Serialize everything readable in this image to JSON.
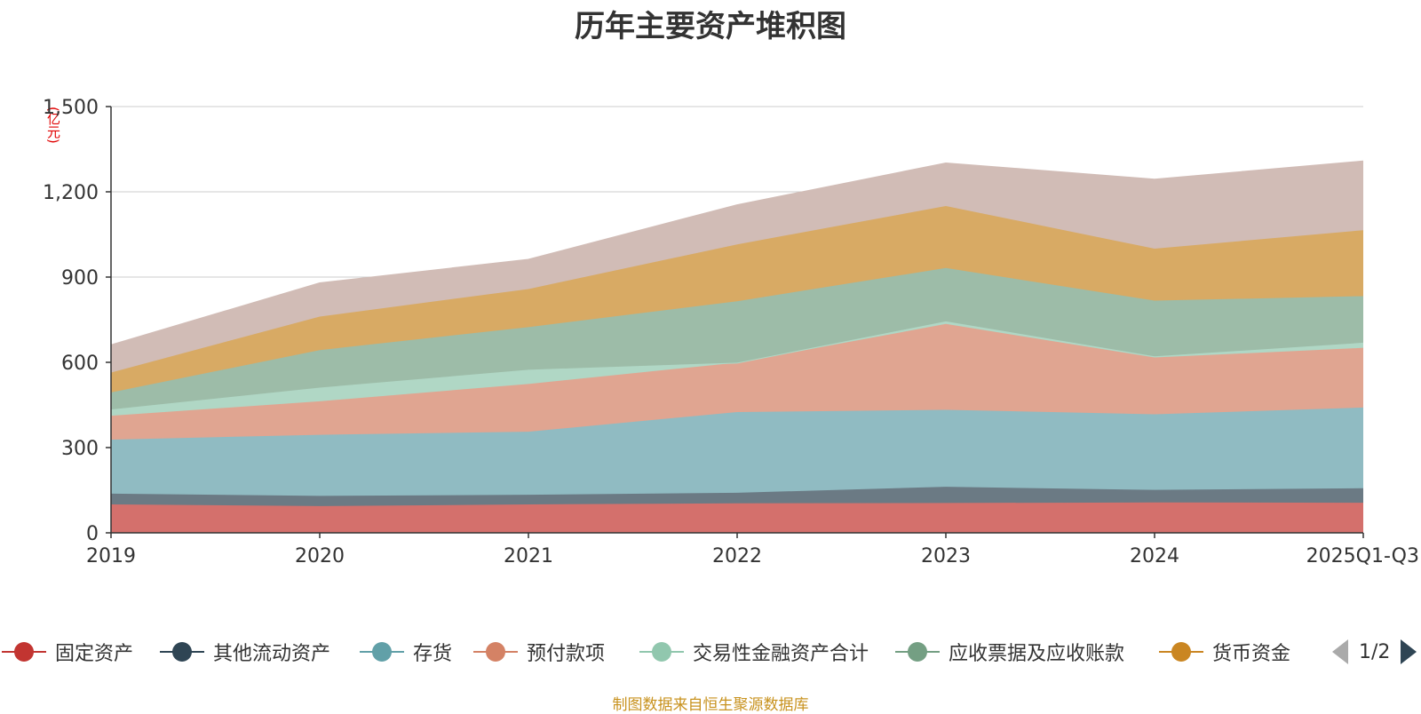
{
  "chart_data": {
    "type": "area",
    "stacked": true,
    "title": "历年主要资产堆积图",
    "ylabel": "(亿元)",
    "xlabel": "",
    "categories": [
      "2019",
      "2020",
      "2021",
      "2022",
      "2023",
      "2024",
      "2025Q1-Q3"
    ],
    "ylim": [
      0,
      1500
    ],
    "yticks": [
      0,
      300,
      600,
      900,
      1200,
      1500
    ],
    "ytick_labels": [
      "0",
      "300",
      "600",
      "900",
      "1,200",
      "1,500"
    ],
    "grid": true,
    "series": [
      {
        "name": "固定资产",
        "color": "#c23531",
        "fill": "#d4706c",
        "values": [
          100,
          94,
          100,
          104,
          105,
          107,
          106
        ]
      },
      {
        "name": "其他流动资产",
        "color": "#2f4554",
        "fill": "#6b7a84",
        "values": [
          38,
          36,
          34,
          37,
          57,
          44,
          51
        ]
      },
      {
        "name": "存货",
        "color": "#61a0a8",
        "fill": "#90bbc2",
        "values": [
          190,
          215,
          222,
          284,
          271,
          266,
          284
        ]
      },
      {
        "name": "预付款项",
        "color": "#d48265",
        "fill": "#e0a591",
        "values": [
          84,
          118,
          168,
          174,
          302,
          200,
          210
        ]
      },
      {
        "name": "交易性金融资产合计",
        "color": "#91c7ae",
        "fill": "#b0d7c5",
        "values": [
          22,
          48,
          50,
          0,
          9,
          4,
          18
        ]
      },
      {
        "name": "应收票据及应收账款",
        "color": "#749f83",
        "fill": "#9dbca8",
        "values": [
          60,
          132,
          150,
          216,
          188,
          196,
          164
        ]
      },
      {
        "name": "货币资金",
        "color": "#ca8622",
        "fill": "#d8aa64",
        "values": [
          70,
          118,
          134,
          200,
          218,
          183,
          232
        ]
      },
      {
        "name": "",
        "color": "#bda29a",
        "fill": "#d1bcb6",
        "values": [
          96,
          117,
          103,
          138,
          150,
          243,
          242
        ]
      }
    ]
  },
  "legend": {
    "items": [
      {
        "label": "固定资产",
        "color": "#c23531"
      },
      {
        "label": "其他流动资产",
        "color": "#2f4554"
      },
      {
        "label": "存货",
        "color": "#61a0a8"
      },
      {
        "label": "预付款项",
        "color": "#d48265"
      },
      {
        "label": "交易性金融资产合计",
        "color": "#91c7ae"
      },
      {
        "label": "应收票据及应收账款",
        "color": "#749f83"
      },
      {
        "label": "货币资金",
        "color": "#ca8622"
      }
    ],
    "page_text": "1/2"
  },
  "footer": {
    "source": "制图数据来自恒生聚源数据库"
  }
}
